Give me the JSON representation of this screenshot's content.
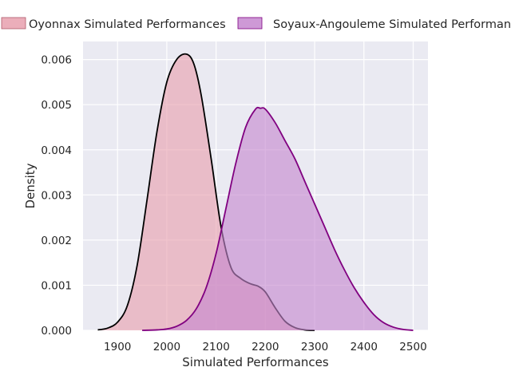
{
  "chart_data": {
    "type": "area",
    "title": "",
    "xlabel": "Simulated Performances",
    "ylabel": "Density",
    "xlim": [
      1830,
      2530
    ],
    "ylim": [
      0,
      0.0064
    ],
    "xticks": [
      1900,
      2000,
      2100,
      2200,
      2300,
      2400,
      2500
    ],
    "yticks": [
      0.0,
      0.001,
      0.002,
      0.003,
      0.004,
      0.005,
      0.006
    ],
    "ytick_labels": [
      "0.000",
      "0.001",
      "0.002",
      "0.003",
      "0.004",
      "0.005",
      "0.006"
    ],
    "grid": true,
    "legend_position": "top",
    "series": [
      {
        "name": "Oyonnax Simulated Performances",
        "fill_color": "#e8a0ae",
        "line_color": "#000000",
        "x": [
          1860,
          1880,
          1900,
          1920,
          1940,
          1960,
          1980,
          2000,
          2020,
          2040,
          2055,
          2070,
          2090,
          2110,
          2130,
          2150,
          2170,
          2185,
          2200,
          2220,
          2240,
          2260,
          2280,
          2300
        ],
        "y": [
          1e-05,
          5e-05,
          0.00018,
          0.00055,
          0.00145,
          0.0029,
          0.0044,
          0.0055,
          0.006,
          0.00612,
          0.0059,
          0.0052,
          0.0038,
          0.0023,
          0.0014,
          0.00115,
          0.00103,
          0.00098,
          0.00085,
          0.0005,
          0.0002,
          6e-05,
          1e-05,
          0.0
        ]
      },
      {
        "name": "Soyaux-Angouleme Simulated Performances",
        "fill_color": "#c587cf",
        "line_color": "#800080",
        "x": [
          1950,
          1980,
          2000,
          2020,
          2040,
          2060,
          2080,
          2100,
          2120,
          2140,
          2160,
          2180,
          2190,
          2200,
          2220,
          2240,
          2260,
          2280,
          2300,
          2320,
          2340,
          2360,
          2380,
          2400,
          2420,
          2440,
          2460,
          2480,
          2500
        ],
        "y": [
          0.0,
          1e-05,
          3e-05,
          9e-05,
          0.00022,
          0.00048,
          0.00095,
          0.0017,
          0.0027,
          0.0037,
          0.0045,
          0.0049,
          0.00492,
          0.0049,
          0.0046,
          0.0042,
          0.0038,
          0.0033,
          0.0028,
          0.0023,
          0.0018,
          0.00135,
          0.00095,
          0.00062,
          0.00035,
          0.00017,
          7e-05,
          2e-05,
          0.0
        ]
      }
    ]
  }
}
